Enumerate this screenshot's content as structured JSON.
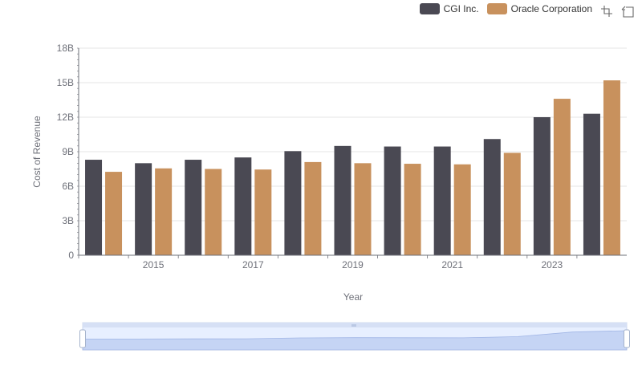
{
  "toolbox": {
    "zoom_icon": "zoom-icon",
    "restore_icon": "restore-icon"
  },
  "chart_data": {
    "type": "bar",
    "title": "",
    "xlabel": "Year",
    "ylabel": "Cost of Revenue",
    "ylim": [
      0,
      18000000000
    ],
    "yticks": [
      0,
      3000000000,
      6000000000,
      9000000000,
      12000000000,
      15000000000,
      18000000000
    ],
    "ytick_labels": [
      "0",
      "3B",
      "6B",
      "9B",
      "12B",
      "15B",
      "18B"
    ],
    "categories": [
      "2014",
      "2015",
      "2016",
      "2017",
      "2018",
      "2019",
      "2020",
      "2021",
      "2022",
      "2023",
      "2024"
    ],
    "xtick_labels": [
      "2015",
      "2017",
      "2019",
      "2021",
      "2023"
    ],
    "series": [
      {
        "name": "CGI Inc.",
        "color": "#4a4953",
        "values": [
          8300000000,
          8000000000,
          8300000000,
          8500000000,
          9050000000,
          9500000000,
          9450000000,
          9450000000,
          10100000000,
          12000000000,
          12300000000
        ]
      },
      {
        "name": "Oracle Corporation",
        "color": "#c8915d",
        "values": [
          7250000000,
          7550000000,
          7500000000,
          7450000000,
          8100000000,
          8000000000,
          7950000000,
          7900000000,
          8900000000,
          13600000000,
          15200000000
        ]
      }
    ],
    "legend_position": "top-right",
    "grid": true,
    "datazoom": {
      "start": 0,
      "end": 100
    }
  }
}
